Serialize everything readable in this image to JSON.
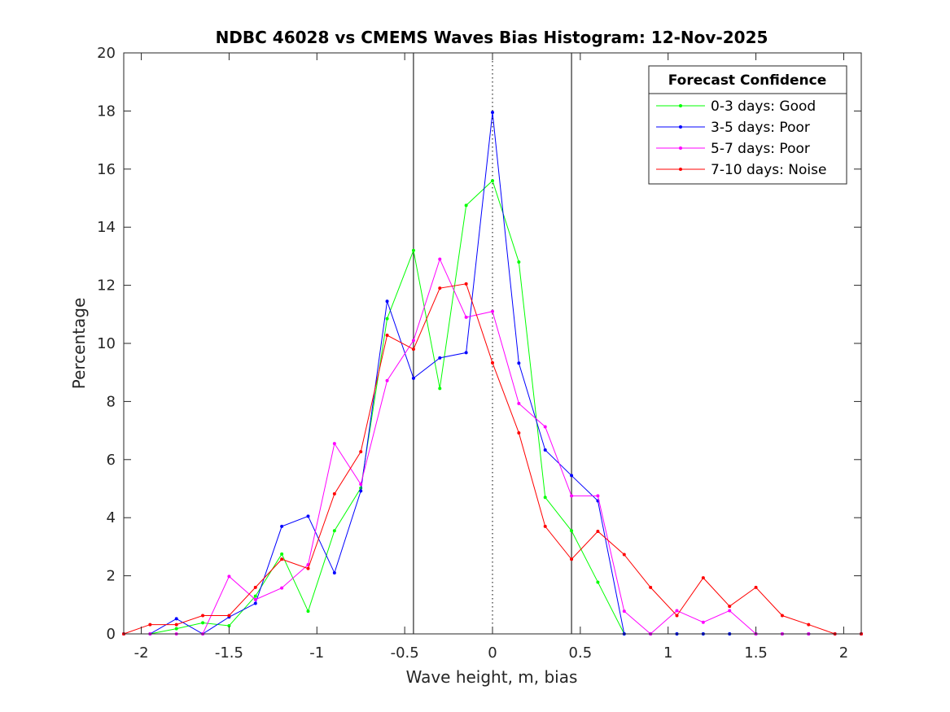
{
  "chart_data": {
    "type": "line",
    "title": "NDBC 46028 vs CMEMS Waves Bias Histogram: 12-Nov-2025",
    "xlabel": "Wave height, m, bias",
    "ylabel": "Percentage",
    "xlim": [
      -2.1,
      2.1
    ],
    "ylim": [
      0,
      20
    ],
    "xticks": [
      -2,
      -1.5,
      -1,
      -0.5,
      0,
      0.5,
      1,
      1.5,
      2
    ],
    "xtick_labels": [
      "-2",
      "-1.5",
      "-1",
      "-0.5",
      "0",
      "0.5",
      "1",
      "1.5",
      "2"
    ],
    "yticks": [
      0,
      2,
      4,
      6,
      8,
      10,
      12,
      14,
      16,
      18,
      20
    ],
    "ytick_labels": [
      "0",
      "2",
      "4",
      "6",
      "8",
      "10",
      "12",
      "14",
      "16",
      "18",
      "20"
    ],
    "vertical_lines": [
      {
        "x": -0.45,
        "style": "solid",
        "color": "#000000"
      },
      {
        "x": 0,
        "style": "dotted",
        "color": "#000000"
      },
      {
        "x": 0.45,
        "style": "solid",
        "color": "#000000"
      }
    ],
    "x": [
      -2.1,
      -1.95,
      -1.8,
      -1.65,
      -1.5,
      -1.35,
      -1.2,
      -1.05,
      -0.9,
      -0.75,
      -0.6,
      -0.45,
      -0.3,
      -0.15,
      0,
      0.15,
      0.3,
      0.45,
      0.6,
      0.75,
      0.9,
      1.05,
      1.2,
      1.35,
      1.5,
      1.65,
      1.8,
      1.95,
      2.1
    ],
    "series": [
      {
        "name": "0-3 days: Good",
        "color": "#00ff00",
        "values": [
          0,
          0,
          0.18,
          0.38,
          0.28,
          1.3,
          2.75,
          0.78,
          3.55,
          5.02,
          10.85,
          13.2,
          8.45,
          14.75,
          15.6,
          12.8,
          4.7,
          3.55,
          1.78,
          0,
          0,
          0,
          0,
          0,
          0,
          0,
          0,
          0,
          0
        ]
      },
      {
        "name": "3-5 days: Poor",
        "color": "#0000ff",
        "values": [
          0,
          0,
          0.52,
          0,
          0.58,
          1.05,
          3.7,
          4.05,
          2.1,
          4.92,
          11.45,
          8.8,
          9.5,
          9.68,
          17.95,
          9.32,
          6.33,
          5.45,
          4.58,
          0,
          0,
          0,
          0,
          0,
          0,
          0,
          0,
          0,
          0
        ]
      },
      {
        "name": "5-7 days: Poor",
        "color": "#ff00ff",
        "values": [
          0,
          0,
          0,
          0,
          1.98,
          1.18,
          1.58,
          2.38,
          6.55,
          5.15,
          8.72,
          10.1,
          12.9,
          10.9,
          11.1,
          7.93,
          7.13,
          4.75,
          4.75,
          0.78,
          0,
          0.8,
          0.4,
          0.8,
          0,
          0,
          0,
          0,
          0
        ]
      },
      {
        "name": "7-10 days: Noise",
        "color": "#ff0000",
        "values": [
          0,
          0.32,
          0.32,
          0.63,
          0.63,
          1.6,
          2.57,
          2.25,
          4.82,
          6.27,
          10.28,
          9.8,
          11.9,
          12.05,
          9.33,
          6.92,
          3.7,
          2.57,
          3.53,
          2.73,
          1.6,
          0.63,
          1.93,
          0.95,
          1.6,
          0.63,
          0.32,
          0,
          0
        ]
      }
    ],
    "legend": {
      "title": "Forecast Confidence",
      "position": "top-right"
    }
  }
}
